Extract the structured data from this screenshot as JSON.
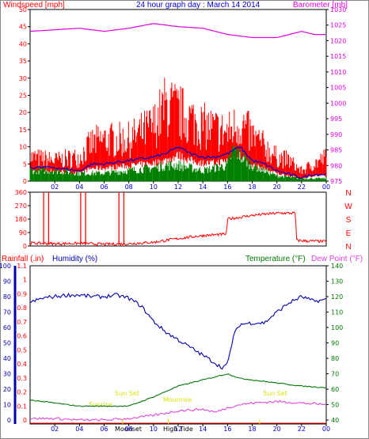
{
  "header": {
    "left": "Windspeed [mph]",
    "center": "24 hour graph day : March 14 2014",
    "right": "Barometer [mb]"
  },
  "bottom_header": {
    "rainfall": "Rainfall (.in)",
    "humidity": "Humidity (%)",
    "temperature": "Temperature (°F)",
    "dewpoint": "Dew Point (°F)"
  },
  "annotations": {
    "sunrise": "Sunrise",
    "sunset": "Sun Set",
    "moonrise": "Moonrise",
    "moonset": "Moonset",
    "hightide": "High Tide"
  },
  "colors": {
    "wind": "#ff0000",
    "barometer": "#dd00dd",
    "gust_line": "#0000cc",
    "low_wind": "#008000",
    "humidity": "#0000aa",
    "temperature": "#007700",
    "dewpoint": "#dd44dd",
    "rain": "#ff0000",
    "annotation": "#ffff00"
  },
  "chart_data": [
    {
      "type": "line",
      "name": "wind_barometer",
      "x_ticks": [
        "02",
        "04",
        "06",
        "08",
        "10",
        "12",
        "14",
        "16",
        "18",
        "20",
        "22",
        "00"
      ],
      "y_left_ticks": [
        "0",
        "5",
        "10",
        "15",
        "20",
        "25",
        "30",
        "35",
        "40",
        "45",
        "50"
      ],
      "y_right_ticks": [
        "975",
        "980",
        "985",
        "990",
        "995",
        "1000",
        "1005",
        "1010",
        "1015",
        "1020",
        "1025",
        "1030"
      ],
      "ylim_left": [
        0,
        50
      ],
      "ylim_right": [
        975,
        1030
      ],
      "series": [
        {
          "key": "barometer",
          "x": [
            0,
            2,
            4,
            6,
            8,
            10,
            11,
            12,
            14,
            16,
            18,
            20,
            21,
            22,
            23,
            24
          ],
          "y": [
            1023,
            1023.5,
            1024,
            1023,
            1024,
            1025.5,
            1025,
            1024.5,
            1024,
            1022,
            1021,
            1021,
            1022,
            1023,
            1022,
            1022
          ]
        },
        {
          "key": "wind_upper",
          "x": [
            0,
            2,
            4,
            5,
            6,
            8,
            10,
            11,
            12,
            13,
            14,
            15,
            16,
            17,
            18,
            19,
            20,
            21,
            22,
            23,
            24
          ],
          "y": [
            7,
            6,
            7,
            11,
            12,
            12,
            16,
            22,
            20,
            18,
            16,
            15,
            14,
            17,
            13,
            10,
            7,
            6,
            3,
            5,
            7
          ]
        },
        {
          "key": "wind_blue",
          "x": [
            0,
            2,
            4,
            5,
            6,
            8,
            10,
            11,
            12,
            13,
            14,
            15,
            16,
            17,
            18,
            19,
            20,
            21,
            22,
            23,
            24
          ],
          "y": [
            4,
            4,
            3,
            5,
            5,
            6,
            7,
            8,
            10,
            8,
            7,
            7,
            8,
            10,
            6,
            5,
            3,
            2,
            1,
            2,
            2
          ]
        },
        {
          "key": "wind_green",
          "x": [
            0,
            2,
            4,
            6,
            8,
            10,
            11,
            12,
            14,
            16,
            16.5,
            17,
            18,
            19,
            20,
            22,
            24
          ],
          "y": [
            2,
            2,
            1.5,
            1.5,
            2,
            2.5,
            3,
            3,
            2,
            3,
            6,
            5,
            3,
            2,
            1,
            0.5,
            0.5
          ]
        }
      ]
    },
    {
      "type": "line",
      "name": "wind_direction",
      "x_ticks": [],
      "y_left_ticks": [
        "360",
        "270",
        "180",
        "90",
        "0"
      ],
      "compass": [
        "N",
        "W",
        "S",
        "E",
        "N"
      ],
      "ylim": [
        0,
        360
      ],
      "series": [
        {
          "key": "direction",
          "x": [
            0,
            2,
            4,
            6,
            8,
            10,
            12,
            14,
            15.9,
            16,
            18,
            20,
            21.5,
            21.6,
            22,
            24
          ],
          "y": [
            20,
            15,
            18,
            12,
            15,
            25,
            50,
            70,
            80,
            180,
            205,
            220,
            220,
            40,
            35,
            30
          ]
        }
      ]
    },
    {
      "type": "line",
      "name": "temp_humidity_rain",
      "x_ticks": [
        "02",
        "04",
        "06",
        "08",
        "10",
        "12",
        "14",
        "16",
        "18",
        "20",
        "22",
        "00"
      ],
      "y_humidity_ticks": [
        "0",
        "10",
        "20",
        "30",
        "40",
        "50",
        "60",
        "70",
        "80",
        "90",
        "100"
      ],
      "y_rain_ticks": [
        "0",
        "0.1",
        "0.2",
        "0.3",
        "0.4",
        "0.5",
        "0.6",
        "0.7",
        "0.8",
        "0.9",
        "1",
        "1.1"
      ],
      "y_temp_ticks": [
        "40",
        "50",
        "60",
        "70",
        "80",
        "90",
        "100",
        "110",
        "120",
        "130",
        "140"
      ],
      "ylim_humidity": [
        0,
        100
      ],
      "ylim_temp": [
        40,
        140
      ],
      "series": [
        {
          "key": "humidity",
          "x": [
            0,
            1,
            2,
            3,
            4,
            5,
            6,
            7,
            8,
            9,
            10,
            11,
            12,
            13,
            14,
            15,
            15.5,
            16,
            16.5,
            17,
            18,
            19,
            20,
            21,
            22,
            23,
            24
          ],
          "y": [
            76,
            79,
            80,
            81,
            81,
            80,
            80,
            81,
            79,
            74,
            64,
            57,
            52,
            47,
            42,
            37,
            34,
            36,
            55,
            62,
            63,
            63,
            70,
            76,
            80,
            77,
            78
          ]
        },
        {
          "key": "temperature",
          "x": [
            0,
            2,
            4,
            6,
            8,
            10,
            12,
            14,
            15,
            16,
            17,
            18,
            20,
            22,
            24
          ],
          "y": [
            53,
            51,
            49,
            49,
            49,
            55,
            62,
            66,
            68,
            70,
            67,
            66,
            64,
            62,
            61
          ]
        },
        {
          "key": "dewpoint",
          "x": [
            0,
            2,
            4,
            6,
            8,
            10,
            12,
            14,
            15,
            16,
            17,
            18,
            20,
            22,
            24
          ],
          "y": [
            41,
            41,
            40,
            40,
            41,
            43,
            46,
            47,
            45,
            48,
            50,
            51,
            52,
            51,
            50
          ]
        }
      ]
    }
  ]
}
